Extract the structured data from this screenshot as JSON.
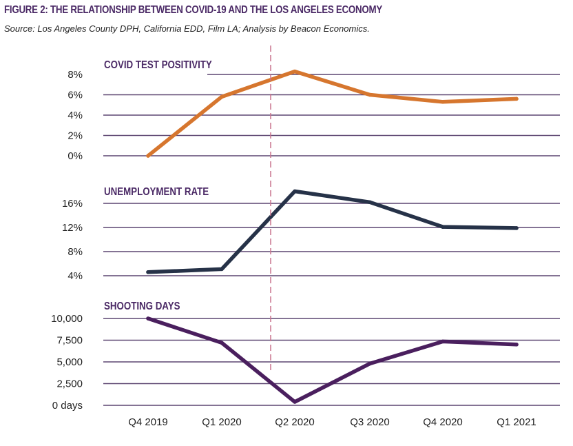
{
  "figure": {
    "title": "FIGURE 2: THE RELATIONSHIP BETWEEN COVID-19 AND THE LOS ANGELES ECONOMY",
    "source": "Source: Los Angeles County DPH, California EDD, Film LA; Analysis by Beacon Economics."
  },
  "colors": {
    "covid": "#d6762e",
    "unemployment": "#263248",
    "shooting": "#4a1f5e",
    "grid": "#5c4570",
    "marker": "#c9748e"
  },
  "chart_data": [
    {
      "type": "line",
      "title": "COVID TEST POSITIVITY",
      "categories": [
        "Q4 2019",
        "Q1 2020",
        "Q2 2020",
        "Q3 2020",
        "Q4 2020",
        "Q1 2021"
      ],
      "values": [
        0,
        5.8,
        8.3,
        6.0,
        5.3,
        5.6
      ],
      "ylim": [
        0,
        8
      ],
      "yticks": [
        0,
        2,
        4,
        6,
        8
      ],
      "ytick_labels": [
        "0%",
        "2%",
        "4%",
        "6%",
        "8%"
      ],
      "grid": true
    },
    {
      "type": "line",
      "title": "UNEMPLOYMENT RATE",
      "categories": [
        "Q4 2019",
        "Q1 2020",
        "Q2 2020",
        "Q3 2020",
        "Q4 2020",
        "Q1 2021"
      ],
      "values": [
        4.6,
        5.1,
        18.0,
        16.2,
        12.1,
        11.9
      ],
      "ylim": [
        4,
        16
      ],
      "yticks": [
        4,
        8,
        12,
        16
      ],
      "ytick_labels": [
        "4%",
        "8%",
        "12%",
        "16%"
      ],
      "grid": true
    },
    {
      "type": "line",
      "title": "SHOOTING DAYS",
      "categories": [
        "Q4 2019",
        "Q1 2020",
        "Q2 2020",
        "Q3 2020",
        "Q4 2020",
        "Q1 2021"
      ],
      "values": [
        10000,
        7200,
        400,
        4800,
        7350,
        7000
      ],
      "ylim": [
        0,
        10000
      ],
      "yticks": [
        0,
        2500,
        5000,
        7500,
        10000
      ],
      "ytick_labels": [
        "0 days",
        "2,500",
        "5,000",
        "7,500",
        "10,000"
      ],
      "grid": true
    }
  ]
}
